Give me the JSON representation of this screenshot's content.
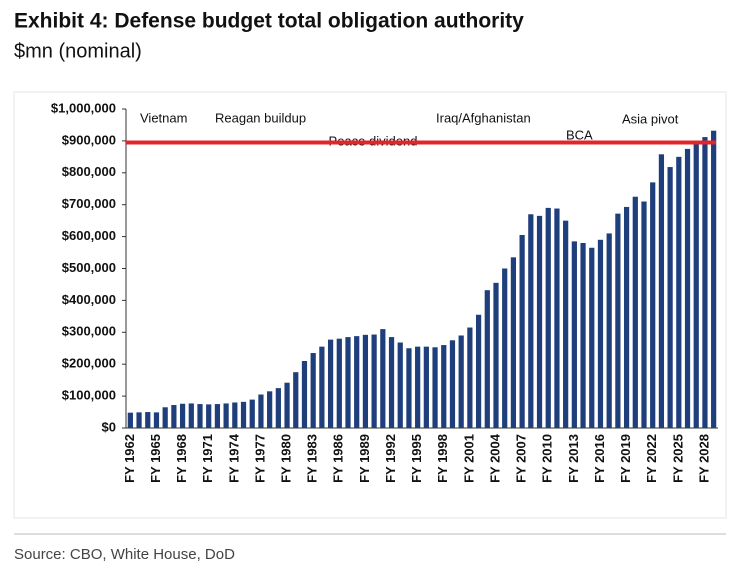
{
  "chart_data": {
    "type": "bar",
    "title": "Exhibit 4: Defense budget total obligation authority",
    "subtitle": "$mn (nominal)",
    "source": "Source: CBO, White House, DoD",
    "categories": [
      "FY 1962",
      null,
      null,
      "FY 1965",
      null,
      null,
      "FY 1968",
      null,
      null,
      "FY 1971",
      null,
      null,
      "FY 1974",
      null,
      null,
      "FY 1977",
      null,
      null,
      "FY 1980",
      null,
      null,
      "FY 1983",
      null,
      null,
      "FY 1986",
      null,
      null,
      "FY 1989",
      null,
      null,
      "FY 1992",
      null,
      null,
      "FY 1995",
      null,
      null,
      "FY 1998",
      null,
      null,
      "FY 2001",
      null,
      null,
      "FY 2004",
      null,
      null,
      "FY 2007",
      null,
      null,
      "FY 2010",
      null,
      null,
      "FY 2013",
      null,
      null,
      "FY 2016",
      null,
      null,
      "FY 2019",
      null,
      null,
      "FY 2022",
      null,
      null,
      "FY 2025",
      null,
      null,
      "FY 2028",
      null
    ],
    "values": [
      48000,
      49000,
      50000,
      49000,
      65000,
      72000,
      76000,
      77000,
      75000,
      74000,
      75000,
      77000,
      80000,
      82000,
      89000,
      105000,
      115000,
      125000,
      142000,
      175000,
      210000,
      235000,
      255000,
      277000,
      280000,
      285000,
      288000,
      292000,
      293000,
      310000,
      285000,
      268000,
      250000,
      255000,
      255000,
      253000,
      260000,
      275000,
      290000,
      315000,
      355000,
      432000,
      455000,
      500000,
      535000,
      605000,
      670000,
      665000,
      690000,
      688000,
      650000,
      585000,
      580000,
      565000,
      590000,
      610000,
      672000,
      693000,
      725000,
      710000,
      770000,
      858000,
      818000,
      850000,
      875000,
      895000,
      912000,
      932000
    ],
    "color": "#1f3f7c",
    "ylim": [
      0,
      1000000
    ],
    "yticks": [
      {
        "value": 0,
        "label": "$0"
      },
      {
        "value": 100000,
        "label": "$100,000"
      },
      {
        "value": 200000,
        "label": "$200,000"
      },
      {
        "value": 300000,
        "label": "$300,000"
      },
      {
        "value": 400000,
        "label": "$400,000"
      },
      {
        "value": 500000,
        "label": "$500,000"
      },
      {
        "value": 600000,
        "label": "$600,000"
      },
      {
        "value": 700000,
        "label": "$700,000"
      },
      {
        "value": 800000,
        "label": "$800,000"
      },
      {
        "value": 900000,
        "label": "$900,000"
      },
      {
        "value": 1000000,
        "label": "$1,000,000"
      }
    ],
    "reference_line": {
      "value": 895000,
      "color": "#e3242b"
    },
    "annotations": [
      "Vietnam",
      "Reagan buildup",
      "Peace dividend",
      "Iraq/Afghanistan",
      "BCA",
      "Asia pivot"
    ]
  }
}
